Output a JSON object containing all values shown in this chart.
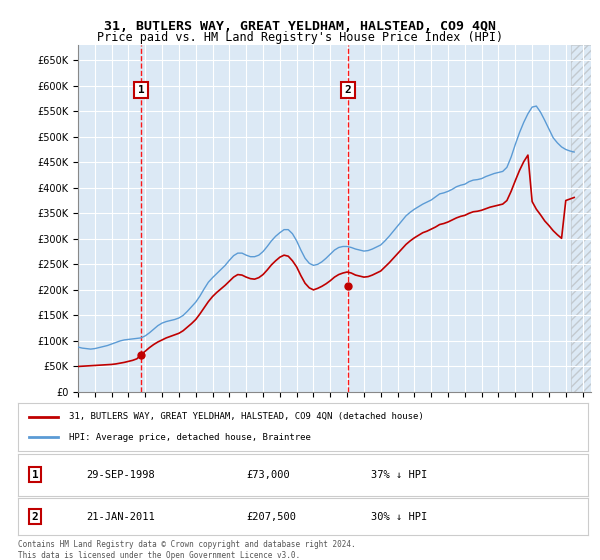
{
  "title_line1": "31, BUTLERS WAY, GREAT YELDHAM, HALSTEAD, CO9 4QN",
  "title_line2": "Price paid vs. HM Land Registry's House Price Index (HPI)",
  "hpi_label": "HPI: Average price, detached house, Braintree",
  "property_label": "31, BUTLERS WAY, GREAT YELDHAM, HALSTEAD, CO9 4QN (detached house)",
  "footer": "Contains HM Land Registry data © Crown copyright and database right 2024.\nThis data is licensed under the Open Government Licence v3.0.",
  "transaction1": {
    "date": "29-SEP-1998",
    "price": 73000,
    "pct": "37%",
    "label": "1"
  },
  "transaction2": {
    "date": "21-JAN-2011",
    "price": 207500,
    "pct": "30%",
    "label": "2"
  },
  "marker1_x": 1998.75,
  "marker1_y": 73000,
  "marker2_x": 2011.05,
  "marker2_y": 207500,
  "vline1_x": 1998.75,
  "vline2_x": 2011.05,
  "ylim": [
    0,
    680000
  ],
  "xlim_start": 1995.0,
  "xlim_end": 2025.5,
  "background_color": "#dce9f5",
  "plot_bg": "#dce9f5",
  "hpi_color": "#5b9bd5",
  "property_color": "#c00000",
  "vline_color": "#ff0000",
  "grid_color": "#ffffff",
  "annotation_box_color": "#ffffff",
  "annotation_border_color": "#c00000",
  "hpi_data_x": [
    1995.0,
    1995.25,
    1995.5,
    1995.75,
    1996.0,
    1996.25,
    1996.5,
    1996.75,
    1997.0,
    1997.25,
    1997.5,
    1997.75,
    1998.0,
    1998.25,
    1998.5,
    1998.75,
    1999.0,
    1999.25,
    1999.5,
    1999.75,
    2000.0,
    2000.25,
    2000.5,
    2000.75,
    2001.0,
    2001.25,
    2001.5,
    2001.75,
    2002.0,
    2002.25,
    2002.5,
    2002.75,
    2003.0,
    2003.25,
    2003.5,
    2003.75,
    2004.0,
    2004.25,
    2004.5,
    2004.75,
    2005.0,
    2005.25,
    2005.5,
    2005.75,
    2006.0,
    2006.25,
    2006.5,
    2006.75,
    2007.0,
    2007.25,
    2007.5,
    2007.75,
    2008.0,
    2008.25,
    2008.5,
    2008.75,
    2009.0,
    2009.25,
    2009.5,
    2009.75,
    2010.0,
    2010.25,
    2010.5,
    2010.75,
    2011.0,
    2011.25,
    2011.5,
    2011.75,
    2012.0,
    2012.25,
    2012.5,
    2012.75,
    2013.0,
    2013.25,
    2013.5,
    2013.75,
    2014.0,
    2014.25,
    2014.5,
    2014.75,
    2015.0,
    2015.25,
    2015.5,
    2015.75,
    2016.0,
    2016.25,
    2016.5,
    2016.75,
    2017.0,
    2017.25,
    2017.5,
    2017.75,
    2018.0,
    2018.25,
    2018.5,
    2018.75,
    2019.0,
    2019.25,
    2019.5,
    2019.75,
    2020.0,
    2020.25,
    2020.5,
    2020.75,
    2021.0,
    2021.25,
    2021.5,
    2021.75,
    2022.0,
    2022.25,
    2022.5,
    2022.75,
    2023.0,
    2023.25,
    2023.5,
    2023.75,
    2024.0,
    2024.25,
    2024.5
  ],
  "hpi_data_y": [
    88000,
    86000,
    85000,
    84000,
    85000,
    87000,
    89000,
    91000,
    94000,
    97000,
    100000,
    102000,
    103000,
    104000,
    105000,
    106000,
    110000,
    116000,
    123000,
    130000,
    135000,
    138000,
    140000,
    142000,
    145000,
    150000,
    158000,
    167000,
    176000,
    188000,
    202000,
    215000,
    224000,
    232000,
    240000,
    248000,
    258000,
    267000,
    272000,
    272000,
    268000,
    265000,
    265000,
    268000,
    275000,
    285000,
    296000,
    305000,
    312000,
    318000,
    318000,
    310000,
    296000,
    278000,
    262000,
    252000,
    248000,
    250000,
    255000,
    262000,
    270000,
    278000,
    283000,
    285000,
    285000,
    283000,
    280000,
    278000,
    276000,
    277000,
    280000,
    284000,
    288000,
    296000,
    305000,
    315000,
    325000,
    335000,
    345000,
    352000,
    358000,
    363000,
    368000,
    372000,
    376000,
    382000,
    388000,
    390000,
    393000,
    397000,
    402000,
    405000,
    407000,
    412000,
    415000,
    416000,
    418000,
    422000,
    425000,
    428000,
    430000,
    432000,
    440000,
    460000,
    485000,
    508000,
    528000,
    545000,
    558000,
    560000,
    548000,
    532000,
    515000,
    498000,
    488000,
    480000,
    475000,
    472000,
    470000
  ],
  "property_data_x": [
    1995.0,
    1995.25,
    1995.5,
    1995.75,
    1996.0,
    1996.25,
    1996.5,
    1996.75,
    1997.0,
    1997.25,
    1997.5,
    1997.75,
    1998.0,
    1998.25,
    1998.5,
    1998.75,
    1999.0,
    1999.25,
    1999.5,
    1999.75,
    2000.0,
    2000.25,
    2000.5,
    2000.75,
    2001.0,
    2001.25,
    2001.5,
    2001.75,
    2002.0,
    2002.25,
    2002.5,
    2002.75,
    2003.0,
    2003.25,
    2003.5,
    2003.75,
    2004.0,
    2004.25,
    2004.5,
    2004.75,
    2005.0,
    2005.25,
    2005.5,
    2005.75,
    2006.0,
    2006.25,
    2006.5,
    2006.75,
    2007.0,
    2007.25,
    2007.5,
    2007.75,
    2008.0,
    2008.25,
    2008.5,
    2008.75,
    2009.0,
    2009.25,
    2009.5,
    2009.75,
    2010.0,
    2010.25,
    2010.5,
    2010.75,
    2011.0,
    2011.25,
    2011.5,
    2011.75,
    2012.0,
    2012.25,
    2012.5,
    2012.75,
    2013.0,
    2013.25,
    2013.5,
    2013.75,
    2014.0,
    2014.25,
    2014.5,
    2014.75,
    2015.0,
    2015.25,
    2015.5,
    2015.75,
    2016.0,
    2016.25,
    2016.5,
    2016.75,
    2017.0,
    2017.25,
    2017.5,
    2017.75,
    2018.0,
    2018.25,
    2018.5,
    2018.75,
    2019.0,
    2019.25,
    2019.5,
    2019.75,
    2020.0,
    2020.25,
    2020.5,
    2020.75,
    2021.0,
    2021.25,
    2021.5,
    2021.75,
    2022.0,
    2022.25,
    2022.5,
    2022.75,
    2023.0,
    2023.25,
    2023.5,
    2023.75,
    2024.0,
    2024.25,
    2024.5
  ],
  "property_data_y": [
    50000,
    50500,
    51000,
    51500,
    52000,
    52500,
    53000,
    53500,
    54000,
    55000,
    56500,
    58000,
    60000,
    62000,
    65000,
    73000,
    80000,
    87000,
    93000,
    98000,
    102000,
    106000,
    109000,
    112000,
    115000,
    120000,
    127000,
    134000,
    142000,
    153000,
    165000,
    177000,
    187000,
    195000,
    202000,
    209000,
    217000,
    225000,
    230000,
    229000,
    225000,
    222000,
    221000,
    224000,
    230000,
    239000,
    249000,
    257000,
    264000,
    268000,
    266000,
    257000,
    245000,
    228000,
    213000,
    204000,
    200000,
    203000,
    207000,
    212000,
    218000,
    225000,
    230000,
    233000,
    235000,
    233000,
    229000,
    227000,
    225000,
    226000,
    229000,
    233000,
    237000,
    245000,
    253000,
    262000,
    271000,
    280000,
    289000,
    296000,
    302000,
    307000,
    312000,
    315000,
    319000,
    323000,
    328000,
    330000,
    333000,
    337000,
    341000,
    344000,
    346000,
    350000,
    353000,
    354000,
    356000,
    359000,
    362000,
    364000,
    366000,
    368000,
    375000,
    393000,
    414000,
    434000,
    451000,
    464000,
    373000,
    358000,
    347000,
    335000,
    326000,
    316000,
    308000,
    301000,
    375000,
    378000,
    381000
  ]
}
